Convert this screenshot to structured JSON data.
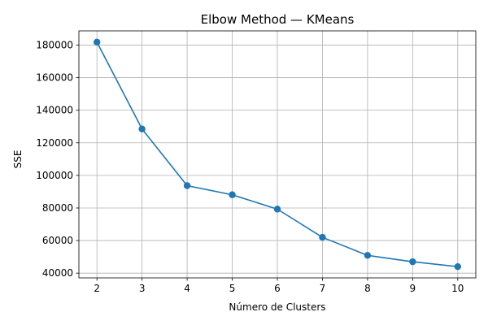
{
  "chart_data": {
    "type": "line",
    "title": "Elbow Method — KMeans",
    "xlabel": "Número de Clusters",
    "ylabel": "SSE",
    "x": [
      2,
      3,
      4,
      5,
      6,
      7,
      8,
      9,
      10
    ],
    "series": [
      {
        "values": [
          181800,
          128500,
          93700,
          88100,
          79300,
          62000,
          50900,
          47000,
          44000
        ]
      }
    ],
    "xticks": [
      2,
      3,
      4,
      5,
      6,
      7,
      8,
      9,
      10
    ],
    "yticks": [
      40000,
      60000,
      80000,
      100000,
      120000,
      140000,
      160000,
      180000
    ],
    "xlim": [
      1.6,
      10.4
    ],
    "ylim": [
      37100,
      188700
    ],
    "grid": true,
    "marker": "circle",
    "colors": {
      "series": "#1f77b4"
    }
  }
}
